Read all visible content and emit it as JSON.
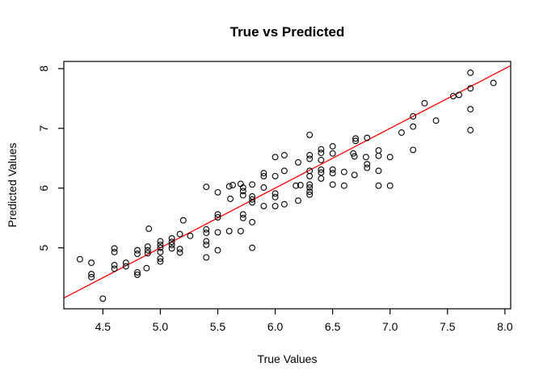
{
  "figure": {
    "title": "True vs Predicted",
    "xlabel": "True Values",
    "ylabel": "Predicted Values"
  },
  "chart_data": {
    "type": "scatter",
    "title": "True vs Predicted",
    "xlabel": "True Values",
    "ylabel": "Predicted Values",
    "xlim": [
      4.16,
      8.05
    ],
    "ylim": [
      3.98,
      8.12
    ],
    "xticks": [
      4.5,
      5.0,
      5.5,
      6.0,
      6.5,
      7.0,
      7.5,
      8.0
    ],
    "xtick_labels": [
      "4.5",
      "5.0",
      "5.5",
      "6.0",
      "6.5",
      "7.0",
      "7.5",
      "8.0"
    ],
    "yticks": [
      5,
      6,
      7,
      8
    ],
    "ytick_labels": [
      "5",
      "6",
      "7",
      "8"
    ],
    "grid": false,
    "legend": null,
    "marker": {
      "shape": "open-circle",
      "color": "#000000",
      "radius_px": 3.4
    },
    "reference_line": {
      "type": "identity",
      "slope": 1,
      "intercept": 0,
      "color": "#FF0000"
    },
    "points": [
      [
        7.7,
        7.93
      ],
      [
        7.9,
        7.76
      ],
      [
        7.7,
        7.67
      ],
      [
        7.6,
        7.56
      ],
      [
        7.55,
        7.54
      ],
      [
        7.3,
        7.42
      ],
      [
        7.7,
        7.32
      ],
      [
        7.2,
        7.2
      ],
      [
        7.4,
        7.13
      ],
      [
        7.2,
        7.03
      ],
      [
        7.1,
        6.93
      ],
      [
        7.7,
        6.97
      ],
      [
        7.2,
        6.64
      ],
      [
        6.3,
        6.89
      ],
      [
        6.7,
        6.79
      ],
      [
        6.7,
        6.83
      ],
      [
        6.8,
        6.84
      ],
      [
        6.5,
        6.7
      ],
      [
        6.4,
        6.65
      ],
      [
        6.4,
        6.59
      ],
      [
        6.3,
        6.55
      ],
      [
        6.3,
        6.49
      ],
      [
        6.4,
        6.47
      ],
      [
        6.5,
        6.58
      ],
      [
        6.68,
        6.58
      ],
      [
        6.69,
        6.53
      ],
      [
        6.79,
        6.52
      ],
      [
        6.9,
        6.63
      ],
      [
        6.9,
        6.54
      ],
      [
        7.0,
        6.52
      ],
      [
        6.2,
        6.43
      ],
      [
        6.8,
        6.4
      ],
      [
        6.8,
        6.34
      ],
      [
        6.3,
        6.29
      ],
      [
        6.4,
        6.31
      ],
      [
        6.4,
        6.26
      ],
      [
        6.5,
        6.31
      ],
      [
        6.5,
        6.25
      ],
      [
        6.6,
        6.27
      ],
      [
        6.69,
        6.22
      ],
      [
        6.9,
        6.29
      ],
      [
        6.4,
        6.16
      ],
      [
        6.3,
        6.2
      ],
      [
        6.18,
        6.04
      ],
      [
        6.22,
        6.05
      ],
      [
        6.3,
        6.06
      ],
      [
        6.3,
        6.01
      ],
      [
        6.5,
        6.06
      ],
      [
        6.6,
        6.04
      ],
      [
        6.9,
        6.04
      ],
      [
        7.0,
        6.04
      ],
      [
        6.3,
        5.94
      ],
      [
        6.3,
        5.89
      ],
      [
        6.2,
        5.79
      ],
      [
        6.0,
        6.52
      ],
      [
        6.08,
        6.55
      ],
      [
        5.9,
        6.25
      ],
      [
        5.9,
        6.2
      ],
      [
        6.0,
        6.2
      ],
      [
        6.08,
        6.29
      ],
      [
        5.7,
        6.07
      ],
      [
        5.8,
        6.06
      ],
      [
        5.9,
        6.01
      ],
      [
        6.0,
        5.91
      ],
      [
        6.0,
        5.85
      ],
      [
        5.72,
        6.01
      ],
      [
        5.72,
        5.95
      ],
      [
        5.72,
        5.88
      ],
      [
        5.8,
        5.86
      ],
      [
        5.8,
        5.81
      ],
      [
        5.8,
        5.76
      ],
      [
        5.9,
        5.7
      ],
      [
        6.0,
        5.7
      ],
      [
        6.08,
        5.73
      ],
      [
        5.72,
        5.56
      ],
      [
        5.72,
        5.5
      ],
      [
        5.8,
        5.43
      ],
      [
        5.4,
        6.02
      ],
      [
        5.5,
        5.93
      ],
      [
        5.6,
        6.03
      ],
      [
        5.63,
        6.05
      ],
      [
        5.61,
        5.82
      ],
      [
        5.5,
        5.56
      ],
      [
        5.5,
        5.51
      ],
      [
        5.2,
        5.46
      ],
      [
        4.9,
        5.32
      ],
      [
        4.6,
        4.99
      ],
      [
        4.6,
        4.93
      ],
      [
        4.3,
        4.81
      ],
      [
        4.4,
        4.75
      ],
      [
        4.6,
        4.71
      ],
      [
        4.6,
        4.65
      ],
      [
        4.7,
        4.75
      ],
      [
        4.7,
        4.69
      ],
      [
        4.8,
        4.96
      ],
      [
        4.8,
        4.9
      ],
      [
        4.89,
        5.02
      ],
      [
        4.89,
        4.96
      ],
      [
        4.89,
        4.91
      ],
      [
        5.0,
        5.11
      ],
      [
        5.0,
        5.05
      ],
      [
        5.0,
        5.0
      ],
      [
        5.0,
        4.93
      ],
      [
        5.0,
        4.82
      ],
      [
        5.0,
        4.77
      ],
      [
        5.1,
        5.16
      ],
      [
        5.1,
        5.1
      ],
      [
        5.1,
        5.05
      ],
      [
        5.1,
        4.99
      ],
      [
        4.4,
        4.56
      ],
      [
        4.4,
        4.51
      ],
      [
        4.8,
        4.59
      ],
      [
        4.8,
        4.55
      ],
      [
        4.88,
        4.66
      ],
      [
        4.5,
        4.15
      ],
      [
        5.17,
        5.23
      ],
      [
        5.26,
        5.2
      ],
      [
        5.4,
        5.31
      ],
      [
        5.4,
        5.25
      ],
      [
        5.4,
        5.11
      ],
      [
        5.4,
        5.05
      ],
      [
        5.4,
        4.84
      ],
      [
        5.5,
        5.26
      ],
      [
        5.6,
        5.28
      ],
      [
        5.7,
        5.28
      ],
      [
        5.5,
        4.96
      ],
      [
        5.8,
        5.0
      ],
      [
        5.17,
        4.98
      ],
      [
        5.17,
        4.92
      ]
    ]
  }
}
